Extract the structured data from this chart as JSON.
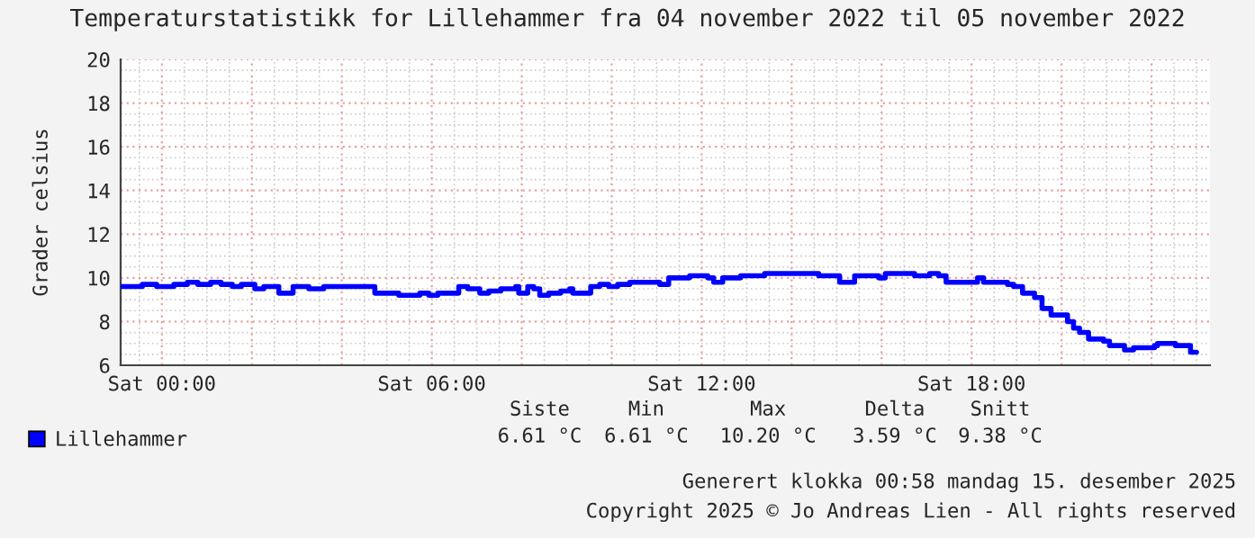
{
  "chart_data": {
    "type": "step",
    "title": "Temperaturstatistikk for Lillehammer fra 04 november 2022 til 05 november 2022",
    "ylabel": "Grader celsius",
    "x": [
      "2022-11-04T23:05",
      "2022-11-04T23:34",
      "2022-11-04T23:53",
      "2022-11-05T00:16",
      "2022-11-05T00:34",
      "2022-11-05T00:48",
      "2022-11-05T01:05",
      "2022-11-05T01:19",
      "2022-11-05T01:34",
      "2022-11-05T01:46",
      "2022-11-05T02:04",
      "2022-11-05T02:16",
      "2022-11-05T02:36",
      "2022-11-05T02:55",
      "2022-11-05T03:16",
      "2022-11-05T03:36",
      "2022-11-05T04:44",
      "2022-11-05T05:16",
      "2022-11-05T05:44",
      "2022-11-05T05:56",
      "2022-11-05T06:08",
      "2022-11-05T06:36",
      "2022-11-05T06:48",
      "2022-11-05T07:04",
      "2022-11-05T07:16",
      "2022-11-05T07:32",
      "2022-11-05T07:52",
      "2022-11-05T07:56",
      "2022-11-05T08:08",
      "2022-11-05T08:16",
      "2022-11-05T08:24",
      "2022-11-05T08:36",
      "2022-11-05T08:52",
      "2022-11-05T09:04",
      "2022-11-05T09:08",
      "2022-11-05T09:32",
      "2022-11-05T09:44",
      "2022-11-05T09:56",
      "2022-11-05T10:08",
      "2022-11-05T10:24",
      "2022-11-05T11:04",
      "2022-11-05T11:16",
      "2022-11-05T11:44",
      "2022-11-05T12:08",
      "2022-11-05T12:16",
      "2022-11-05T12:28",
      "2022-11-05T12:52",
      "2022-11-05T13:24",
      "2022-11-05T14:36",
      "2022-11-05T15:04",
      "2022-11-05T15:24",
      "2022-11-05T15:56",
      "2022-11-05T16:05",
      "2022-11-05T16:44",
      "2022-11-05T17:04",
      "2022-11-05T17:16",
      "2022-11-05T17:26",
      "2022-11-05T18:08",
      "2022-11-05T18:16",
      "2022-11-05T18:48",
      "2022-11-05T18:56",
      "2022-11-05T19:08",
      "2022-11-05T19:24",
      "2022-11-05T19:34",
      "2022-11-05T19:46",
      "2022-11-05T20:08",
      "2022-11-05T20:16",
      "2022-11-05T20:24",
      "2022-11-05T20:36",
      "2022-11-05T20:56",
      "2022-11-05T21:04",
      "2022-11-05T21:24",
      "2022-11-05T21:36",
      "2022-11-05T22:04",
      "2022-11-05T22:08",
      "2022-11-05T22:32",
      "2022-11-05T22:52",
      "2022-11-05T23:00"
    ],
    "series": [
      {
        "name": "Lillehammer",
        "color": "#0000ff",
        "values": [
          9.6,
          9.7,
          9.6,
          9.7,
          9.8,
          9.7,
          9.8,
          9.7,
          9.6,
          9.7,
          9.5,
          9.6,
          9.3,
          9.6,
          9.5,
          9.6,
          9.3,
          9.2,
          9.3,
          9.2,
          9.3,
          9.6,
          9.5,
          9.3,
          9.4,
          9.5,
          9.6,
          9.3,
          9.6,
          9.5,
          9.2,
          9.3,
          9.4,
          9.5,
          9.3,
          9.6,
          9.7,
          9.6,
          9.7,
          9.8,
          9.7,
          10.0,
          10.1,
          10.0,
          9.8,
          10.0,
          10.1,
          10.2,
          10.1,
          9.8,
          10.1,
          10.0,
          10.2,
          10.1,
          10.2,
          10.1,
          9.8,
          10.0,
          9.8,
          9.7,
          9.6,
          9.3,
          9.1,
          8.6,
          8.3,
          8.0,
          7.7,
          7.5,
          7.2,
          7.1,
          6.9,
          6.7,
          6.8,
          6.9,
          7.0,
          6.9,
          6.6,
          6.6
        ]
      }
    ],
    "xlim": [
      "2022-11-04T23:05",
      "2022-11-05T23:18"
    ],
    "xticks": [
      {
        "value": "2022-11-05T00:00",
        "label": "Sat 00:00"
      },
      {
        "value": "2022-11-05T02:00",
        "label": null
      },
      {
        "value": "2022-11-05T04:00",
        "label": null
      },
      {
        "value": "2022-11-05T06:00",
        "label": "Sat 06:00"
      },
      {
        "value": "2022-11-05T08:00",
        "label": null
      },
      {
        "value": "2022-11-05T10:00",
        "label": null
      },
      {
        "value": "2022-11-05T12:00",
        "label": "Sat 12:00"
      },
      {
        "value": "2022-11-05T14:00",
        "label": null
      },
      {
        "value": "2022-11-05T16:00",
        "label": null
      },
      {
        "value": "2022-11-05T18:00",
        "label": "Sat 18:00"
      },
      {
        "value": "2022-11-05T20:00",
        "label": null
      },
      {
        "value": "2022-11-05T22:00",
        "label": null
      }
    ],
    "ylim": [
      6,
      20
    ],
    "yticks": [
      6,
      8,
      10,
      12,
      14,
      16,
      18,
      20
    ],
    "grid": true,
    "legend": "bottom left",
    "line_style": "solid",
    "marker": "none",
    "annotations": [
      "Siste",
      "Min",
      "Max",
      "Delta",
      "Snitt",
      "6.61 °C",
      "6.61 °C",
      "10.20 °C",
      "3.59 °C",
      "9.38 °C",
      "Generert klokka 00:58 mandag 15. desember 2025",
      "Copyright 2025 © Jo Andreas Lien - All rights reserved"
    ]
  }
}
